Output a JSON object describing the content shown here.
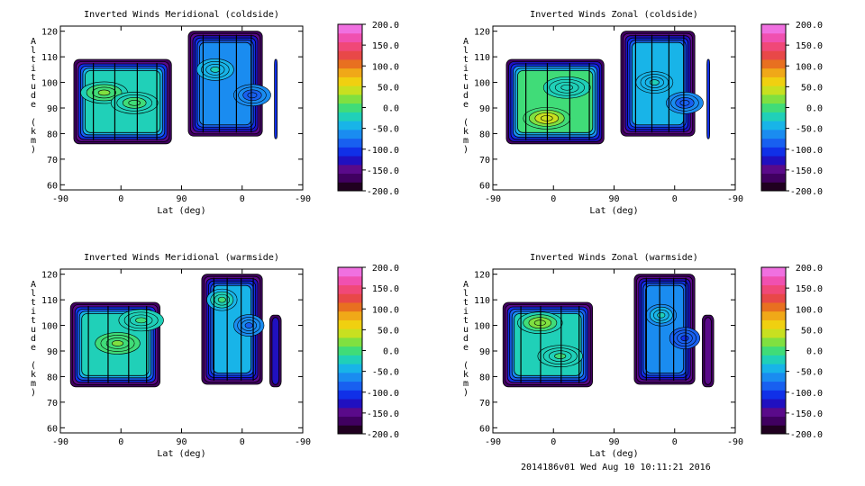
{
  "colors": {
    "scale": [
      "#200020",
      "#400060",
      "#5a0a8a",
      "#2010c0",
      "#1030e8",
      "#1860f0",
      "#1a8cf0",
      "#18b4e8",
      "#20d0b8",
      "#40dc78",
      "#80e040",
      "#c8e020",
      "#f0d010",
      "#f0a818",
      "#e87020",
      "#e84848",
      "#f04878",
      "#f050b0",
      "#f070e0"
    ],
    "contour_line": "#000000"
  },
  "footer": "2014186v01 Wed Aug 10 10:11:21 2016",
  "chart_data": [
    {
      "type": "heatmap",
      "title": "Inverted Winds Meridional (coldside)",
      "xlabel": "Lat (deg)",
      "ylabel": "Altitude (km)",
      "xtick_labels": [
        "-90",
        "0",
        "90",
        "0",
        "-90"
      ],
      "yticks": [
        60,
        70,
        80,
        90,
        100,
        110,
        120
      ],
      "ylim": [
        58,
        122
      ],
      "colorbar": {
        "ticks": [
          "200.0",
          "150.0",
          "100.0",
          "50.0",
          "0.0",
          "-50.0",
          "-100.0",
          "-150.0",
          "-200.0"
        ],
        "range": [
          -200,
          200
        ]
      },
      "data_segments": [
        {
          "x_range": [
            -70,
            75
          ],
          "alt_range": [
            76,
            109
          ],
          "value": -20,
          "blobs": [
            {
              "x": -25,
              "alt": 96,
              "value": 15
            },
            {
              "x": 20,
              "alt": 92,
              "value": -5
            }
          ]
        },
        {
          "x_range": [
            100,
            210
          ],
          "alt_range": [
            79,
            120
          ],
          "value": -60,
          "blobs": [
            {
              "x": 140,
              "alt": 105,
              "value": -30
            },
            {
              "x": 195,
              "alt": 95,
              "value": -80
            }
          ]
        },
        {
          "x_range": [
            228,
            232
          ],
          "alt_range": [
            78,
            109
          ],
          "value": -110,
          "blobs": []
        }
      ]
    },
    {
      "type": "heatmap",
      "title": "Inverted Winds Zonal (coldside)",
      "xlabel": "Lat (deg)",
      "ylabel": "Altitude (km)",
      "xtick_labels": [
        "-90",
        "0",
        "90",
        "0",
        "-90"
      ],
      "yticks": [
        60,
        70,
        80,
        90,
        100,
        110,
        120
      ],
      "ylim": [
        58,
        122
      ],
      "colorbar": {
        "ticks": [
          "200.0",
          "150.0",
          "100.0",
          "50.0",
          "0.0",
          "-50.0",
          "-100.0",
          "-150.0",
          "-200.0"
        ],
        "range": [
          -200,
          200
        ]
      },
      "data_segments": [
        {
          "x_range": [
            -70,
            75
          ],
          "alt_range": [
            76,
            109
          ],
          "value": -10,
          "blobs": [
            {
              "x": -10,
              "alt": 86,
              "value": 50
            },
            {
              "x": 20,
              "alt": 98,
              "value": -20
            }
          ]
        },
        {
          "x_range": [
            100,
            210
          ],
          "alt_range": [
            79,
            120
          ],
          "value": -50,
          "blobs": [
            {
              "x": 150,
              "alt": 100,
              "value": -30
            },
            {
              "x": 195,
              "alt": 92,
              "value": -90
            }
          ]
        },
        {
          "x_range": [
            228,
            232
          ],
          "alt_range": [
            78,
            109
          ],
          "value": -110,
          "blobs": []
        }
      ]
    },
    {
      "type": "heatmap",
      "title": "Inverted Winds Meridional (warmside)",
      "xlabel": "Lat (deg)",
      "ylabel": "Altitude (km)",
      "xtick_labels": [
        "-90",
        "0",
        "90",
        "0",
        "-90"
      ],
      "yticks": [
        60,
        70,
        80,
        90,
        100,
        110,
        120
      ],
      "ylim": [
        58,
        122
      ],
      "colorbar": {
        "ticks": [
          "200.0",
          "150.0",
          "100.0",
          "50.0",
          "0.0",
          "-50.0",
          "-100.0",
          "-150.0",
          "-200.0"
        ],
        "range": [
          -200,
          200
        ]
      },
      "data_segments": [
        {
          "x_range": [
            -75,
            58
          ],
          "alt_range": [
            76,
            109
          ],
          "value": -20,
          "blobs": [
            {
              "x": -5,
              "alt": 93,
              "value": 20
            },
            {
              "x": 30,
              "alt": 102,
              "value": -10
            }
          ]
        },
        {
          "x_range": [
            120,
            210
          ],
          "alt_range": [
            77,
            120
          ],
          "value": -50,
          "blobs": [
            {
              "x": 150,
              "alt": 110,
              "value": -10
            },
            {
              "x": 190,
              "alt": 100,
              "value": -80
            }
          ]
        },
        {
          "x_range": [
            221,
            238
          ],
          "alt_range": [
            76,
            104
          ],
          "value": -130,
          "blobs": []
        }
      ]
    },
    {
      "type": "heatmap",
      "title": "Inverted Winds Zonal (warmside)",
      "xlabel": "Lat (deg)",
      "ylabel": "Altitude (km)",
      "xtick_labels": [
        "-90",
        "0",
        "90",
        "0",
        "-90"
      ],
      "yticks": [
        60,
        70,
        80,
        90,
        100,
        110,
        120
      ],
      "ylim": [
        58,
        122
      ],
      "colorbar": {
        "ticks": [
          "200.0",
          "150.0",
          "100.0",
          "50.0",
          "0.0",
          "-50.0",
          "-100.0",
          "-150.0",
          "-200.0"
        ],
        "range": [
          -200,
          200
        ]
      },
      "data_segments": [
        {
          "x_range": [
            -75,
            58
          ],
          "alt_range": [
            76,
            109
          ],
          "value": -30,
          "blobs": [
            {
              "x": -20,
              "alt": 101,
              "value": 30
            },
            {
              "x": 10,
              "alt": 88,
              "value": -10
            }
          ]
        },
        {
          "x_range": [
            120,
            210
          ],
          "alt_range": [
            77,
            120
          ],
          "value": -70,
          "blobs": [
            {
              "x": 160,
              "alt": 104,
              "value": -30
            },
            {
              "x": 195,
              "alt": 95,
              "value": -100
            }
          ]
        },
        {
          "x_range": [
            221,
            238
          ],
          "alt_range": [
            76,
            104
          ],
          "value": -150,
          "blobs": []
        }
      ]
    }
  ]
}
